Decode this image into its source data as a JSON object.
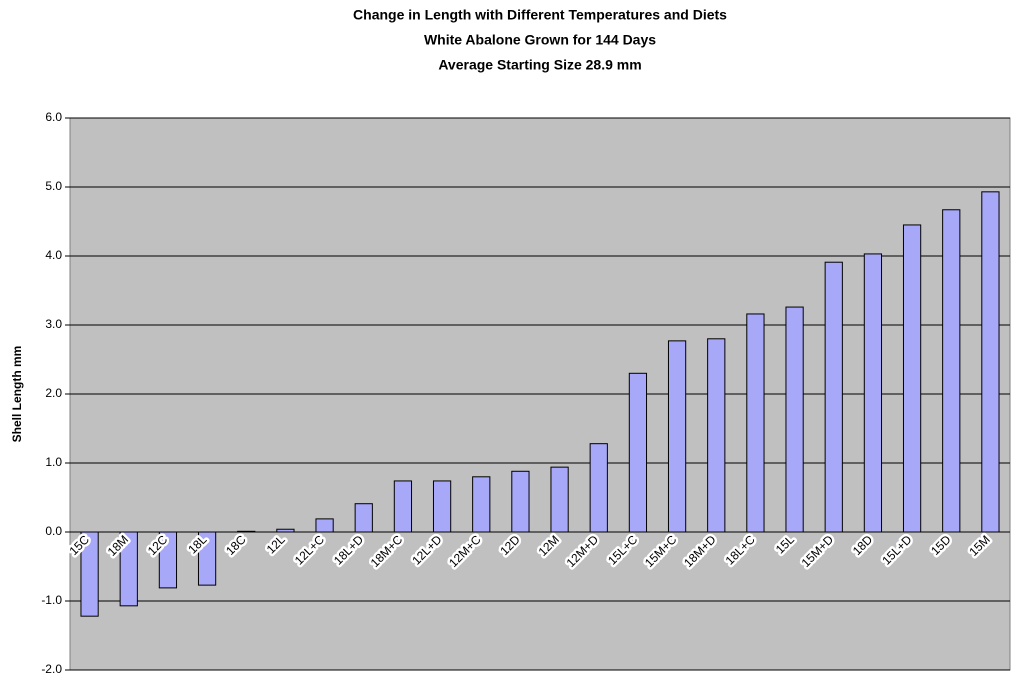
{
  "chart_data": {
    "type": "bar",
    "title": "Change in Length with Different Temperatures and Diets",
    "subtitle": [
      "White Abalone Grown for 144 Days",
      "Average Starting Size 28.9 mm"
    ],
    "y_label": "Shell Length mm",
    "categories": [
      "15C",
      "18M",
      "12C",
      "18L",
      "18C",
      "12L",
      "12L+C",
      "18L+D",
      "18M+C",
      "12L+D",
      "12M+C",
      "12D",
      "12M",
      "12M+D",
      "15L+C",
      "15M+C",
      "18M+D",
      "18L+C",
      "15L",
      "15M+D",
      "18D",
      "15L+D",
      "15D",
      "15M"
    ],
    "values": [
      -1.22,
      -1.07,
      -0.81,
      -0.77,
      0.01,
      0.04,
      0.19,
      0.41,
      0.74,
      0.74,
      0.8,
      0.88,
      0.94,
      1.28,
      2.3,
      2.77,
      2.8,
      3.16,
      3.26,
      3.91,
      4.03,
      4.45,
      4.67,
      4.93
    ],
    "color": "#a8a8f8",
    "ylim": [
      -2,
      6
    ],
    "yticks": [
      {
        "value": -2,
        "label": "-2.0"
      },
      {
        "value": -1,
        "label": "-1.0"
      },
      {
        "value": 0,
        "label": "0.0"
      },
      {
        "value": 1,
        "label": "1.0"
      },
      {
        "value": 2,
        "label": "2.0"
      },
      {
        "value": 3,
        "label": "3.0"
      },
      {
        "value": 4,
        "label": "4.0"
      },
      {
        "value": 5,
        "label": "5.0"
      },
      {
        "value": 6,
        "label": "6.0"
      }
    ],
    "grid": true
  }
}
